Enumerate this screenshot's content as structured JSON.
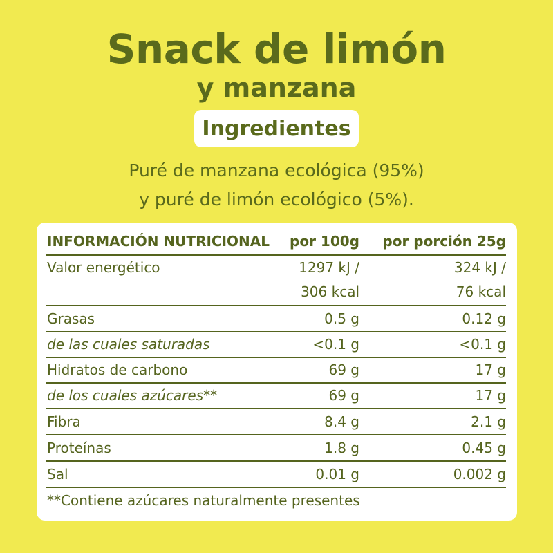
{
  "header": {
    "title_line1": "Snack de limón",
    "title_line2": "y manzana",
    "ingredients_label": "Ingredientes",
    "ingredients_line1": "Puré de manzana ecológica (95%)",
    "ingredients_line2": "y puré de limón ecológico (5%)."
  },
  "table": {
    "headers": {
      "name": "INFORMACIÓN NUTRICIONAL",
      "per100": "por 100g",
      "perPortion": "por porción 25g"
    },
    "energy": {
      "label": "Valor energético",
      "per100_line1": "1297 kJ /",
      "per100_line2": "306 kcal",
      "portion_line1": "324 kJ /",
      "portion_line2": "76 kcal"
    },
    "rows": [
      {
        "label": "Grasas",
        "per100": "0.5 g",
        "portion": "0.12 g"
      },
      {
        "label": "de las cuales saturadas",
        "per100": "<0.1 g",
        "portion": "<0.1 g"
      },
      {
        "label": "Hidratos de carbono",
        "per100": "69 g",
        "portion": "17 g"
      },
      {
        "label": "de los cuales azúcares**",
        "per100": "69 g",
        "portion": "17 g"
      },
      {
        "label": "Fibra",
        "per100": "8.4 g",
        "portion": "2.1 g"
      },
      {
        "label": "Proteínas",
        "per100": "1.8 g",
        "portion": "0.45 g"
      },
      {
        "label": "Sal",
        "per100": "0.01 g",
        "portion": "0.002 g"
      }
    ],
    "footnote": "**Contiene azúcares naturalmente presentes"
  },
  "colors": {
    "background": "#f1ea50",
    "text": "#55641e",
    "card": "#ffffff"
  }
}
